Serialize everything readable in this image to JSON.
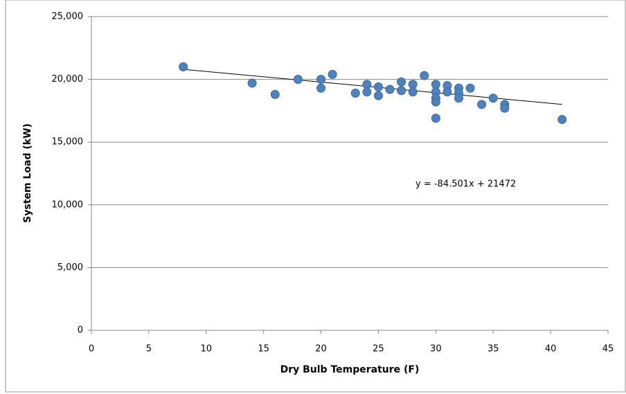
{
  "chart_data": {
    "type": "scatter",
    "x_label": "Dry Bulb Temperature (F)",
    "y_label": "System Load (kW)",
    "color": "#4f81bd",
    "x": [
      8,
      14,
      16,
      18,
      20,
      20,
      21,
      23,
      24,
      24,
      25,
      25,
      26,
      27,
      27,
      28,
      28,
      29,
      30,
      30,
      30,
      30,
      30,
      31,
      31,
      32,
      32,
      32,
      33,
      34,
      35,
      36,
      36,
      41
    ],
    "values": [
      21000,
      19700,
      18800,
      20000,
      20000,
      19300,
      20400,
      18900,
      19600,
      19000,
      19400,
      18700,
      19200,
      19800,
      19100,
      19600,
      19000,
      20300,
      19600,
      19000,
      18500,
      18200,
      16900,
      19500,
      19000,
      19300,
      18900,
      18500,
      19300,
      18000,
      18500,
      18000,
      17700,
      16800
    ],
    "trendline": {
      "slope": -84.501,
      "intercept": 21472,
      "color": "#000000"
    },
    "annotation": "y = -84.501x + 21472",
    "xlim": [
      0,
      45
    ],
    "xticks": [
      0,
      5,
      10,
      15,
      20,
      25,
      30,
      35,
      40,
      45
    ],
    "ylim": [
      0,
      25000
    ],
    "yticks": [
      {
        "value": 0,
        "label": "0"
      },
      {
        "value": 5000,
        "label": "5,000"
      },
      {
        "value": 10000,
        "label": "10,000"
      },
      {
        "value": 15000,
        "label": "15,000"
      },
      {
        "value": 20000,
        "label": "20,000"
      },
      {
        "value": 25000,
        "label": "25,000"
      }
    ],
    "grid": true
  }
}
